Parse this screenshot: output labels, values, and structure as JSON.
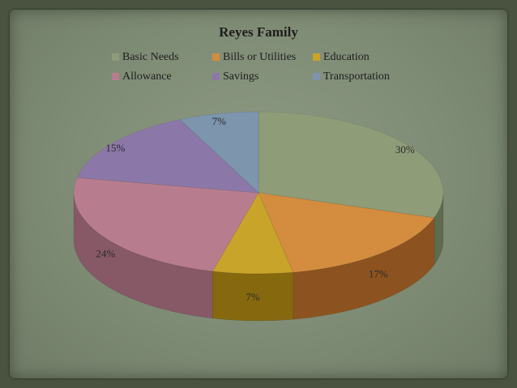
{
  "chart_data": {
    "type": "pie",
    "title": "Reyes Family",
    "legend_position": "top",
    "slices": [
      {
        "name": "Basic Needs",
        "value": 30,
        "label": "30%",
        "color": "#8e9c78",
        "side": "#5f6a4f"
      },
      {
        "name": "Bills or Utilities",
        "value": 17,
        "label": "17%",
        "color": "#d48c3e",
        "side": "#8c5320"
      },
      {
        "name": "Education",
        "value": 7,
        "label": "7%",
        "color": "#c9a42a",
        "side": "#86690f"
      },
      {
        "name": "Allowance",
        "value": 24,
        "label": "24%",
        "color": "#b77d8f",
        "side": "#875967"
      },
      {
        "name": "Savings",
        "value": 15,
        "label": "15%",
        "color": "#8c78a8",
        "side": "#5d4e73"
      },
      {
        "name": "Transportation",
        "value": 7,
        "label": "7%",
        "color": "#7d95ad",
        "side": "#51657a"
      }
    ]
  }
}
